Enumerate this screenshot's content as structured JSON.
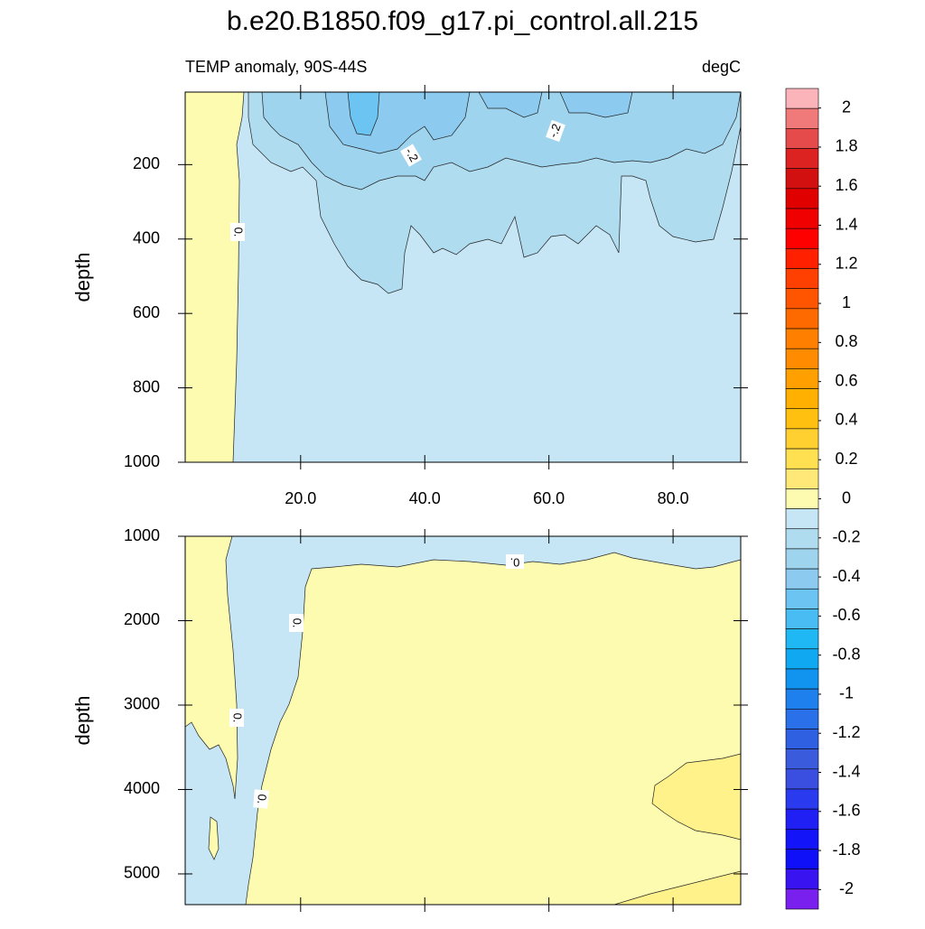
{
  "chart_data": {
    "type": "contour",
    "title": "b.e20.B1850.f09_g17.pi_control.all.215",
    "subtitle_left": "TEMP anomaly, 90S-44S",
    "subtitle_right": "degC",
    "panels": [
      {
        "ylabel": "depth",
        "xlim": [
          1.4,
          90.9
        ],
        "ylim": [
          5,
          1000
        ],
        "yticks": [
          200,
          400,
          600,
          800,
          1000
        ],
        "xticks": [
          {
            "value": 20,
            "label": "20.0"
          },
          {
            "value": 40,
            "label": "40.0"
          },
          {
            "value": 60,
            "label": "60.0"
          },
          {
            "value": 80,
            "label": "80.0"
          }
        ],
        "show_x_tick_labels": true,
        "contour_labels": [
          "0.",
          "-.2",
          "-.2"
        ]
      },
      {
        "ylabel": "depth",
        "xlim": [
          1.4,
          90.9
        ],
        "ylim": [
          1000,
          5364
        ],
        "yticks": [
          1000,
          2000,
          3000,
          4000,
          5000
        ],
        "xticks": [
          20,
          40,
          60,
          80
        ],
        "show_x_tick_labels": false,
        "contour_labels": [
          "0.",
          "0.",
          "0.",
          "0."
        ]
      }
    ],
    "colorbar": {
      "lim": [
        -2.1,
        2.1
      ],
      "ticks": [
        2,
        1.8,
        1.6,
        1.4,
        1.2,
        1,
        0.8,
        0.6,
        0.4,
        0.2,
        0,
        -0.2,
        -0.4,
        -0.6,
        -0.8,
        -1,
        -1.2,
        -1.4,
        -1.6,
        -1.8,
        -2
      ],
      "colors": [
        "#fbb4b9",
        "#f07a7a",
        "#e64b4b",
        "#dd2222",
        "#d31010",
        "#e00000",
        "#f00000",
        "#ff0000",
        "#ff2000",
        "#ff4000",
        "#ff5500",
        "#ff6a00",
        "#ff7f00",
        "#ff8c00",
        "#ffa000",
        "#ffb000",
        "#ffc010",
        "#ffd030",
        "#ffe050",
        "#ffe878",
        "#fdfbb0",
        "#c6e6f6",
        "#b0dcf0",
        "#9ed4ee",
        "#8ccbef",
        "#6cc4f2",
        "#49bcf4",
        "#1fb8f5",
        "#10a8f0",
        "#1094f0",
        "#1e80ec",
        "#2a70e8",
        "#3060e2",
        "#3a5cdc",
        "#3a4ee0",
        "#2a3aee",
        "#2020f4",
        "#1414f8",
        "#1010f8",
        "#3a14f0",
        "#7a20ee"
      ]
    }
  }
}
